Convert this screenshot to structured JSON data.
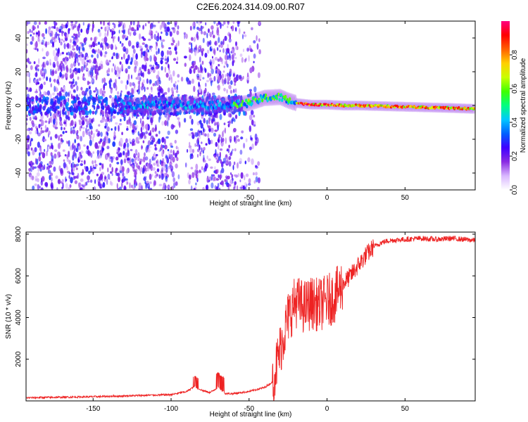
{
  "title": "C2E6.2024.314.09.00.R07",
  "chart_data": [
    {
      "type": "heatmap",
      "xlabel": "Height of straight line (km)",
      "ylabel": "Frequency (Hz)",
      "xlim": [
        -193,
        95
      ],
      "ylim": [
        -50,
        50
      ],
      "xticks": [
        -150,
        -100,
        -50,
        0,
        50
      ],
      "yticks": [
        -40,
        -20,
        0,
        20,
        40
      ],
      "colorbar": {
        "label": "Normalized spectral amplitude",
        "range": [
          0,
          1
        ],
        "ticks": [
          0.0,
          0.2,
          0.4,
          0.6,
          0.8
        ],
        "tick_labels": [
          "0.0",
          "0.2",
          "0.4",
          "0.6",
          "0.8"
        ],
        "colormap": [
          "#ffffff",
          "#d9b8ff",
          "#8a2be2",
          "#4000ff",
          "#0060ff",
          "#00c8ff",
          "#00ff80",
          "#40ff00",
          "#c8ff00",
          "#ffd000",
          "#ff6000",
          "#ff0000",
          "#ff0080"
        ]
      },
      "trace": {
        "x": [
          -130,
          -100,
          -80,
          -60,
          -50,
          -40,
          -30,
          -25,
          -20,
          -10,
          0,
          10,
          20,
          40,
          60,
          80,
          95
        ],
        "y": [
          0,
          0.5,
          0.5,
          0.5,
          1.5,
          4.5,
          5.0,
          3.0,
          1.5,
          0.5,
          0.5,
          0.0,
          0.0,
          -0.5,
          -1.0,
          -1.5,
          -2.0
        ]
      }
    },
    {
      "type": "line",
      "xlabel": "Height of straight line (km)",
      "ylabel": "SNR (10 * v/v)",
      "xlim": [
        -193,
        95
      ],
      "ylim": [
        0,
        8100
      ],
      "xticks": [
        -150,
        -100,
        -50,
        0,
        50
      ],
      "yticks": [
        2000,
        4000,
        6000,
        8000
      ],
      "color": "#ee2222",
      "series": [
        {
          "x": [
            -193,
            -150,
            -100,
            -90,
            -85,
            -80,
            -75,
            -70,
            -65,
            -60,
            -50,
            -40,
            -35,
            -30,
            -25,
            -20,
            -15,
            -10,
            -5,
            0,
            5,
            10,
            15,
            20,
            25,
            30,
            35,
            40,
            50,
            60,
            70,
            80,
            95
          ],
          "y": [
            150,
            200,
            300,
            450,
            700,
            500,
            400,
            650,
            350,
            350,
            450,
            650,
            900,
            2500,
            4000,
            4800,
            4500,
            4700,
            4600,
            4800,
            5000,
            5600,
            6000,
            6500,
            7000,
            7400,
            7600,
            7700,
            7750,
            7800,
            7750,
            7800,
            7700
          ]
        }
      ]
    }
  ]
}
